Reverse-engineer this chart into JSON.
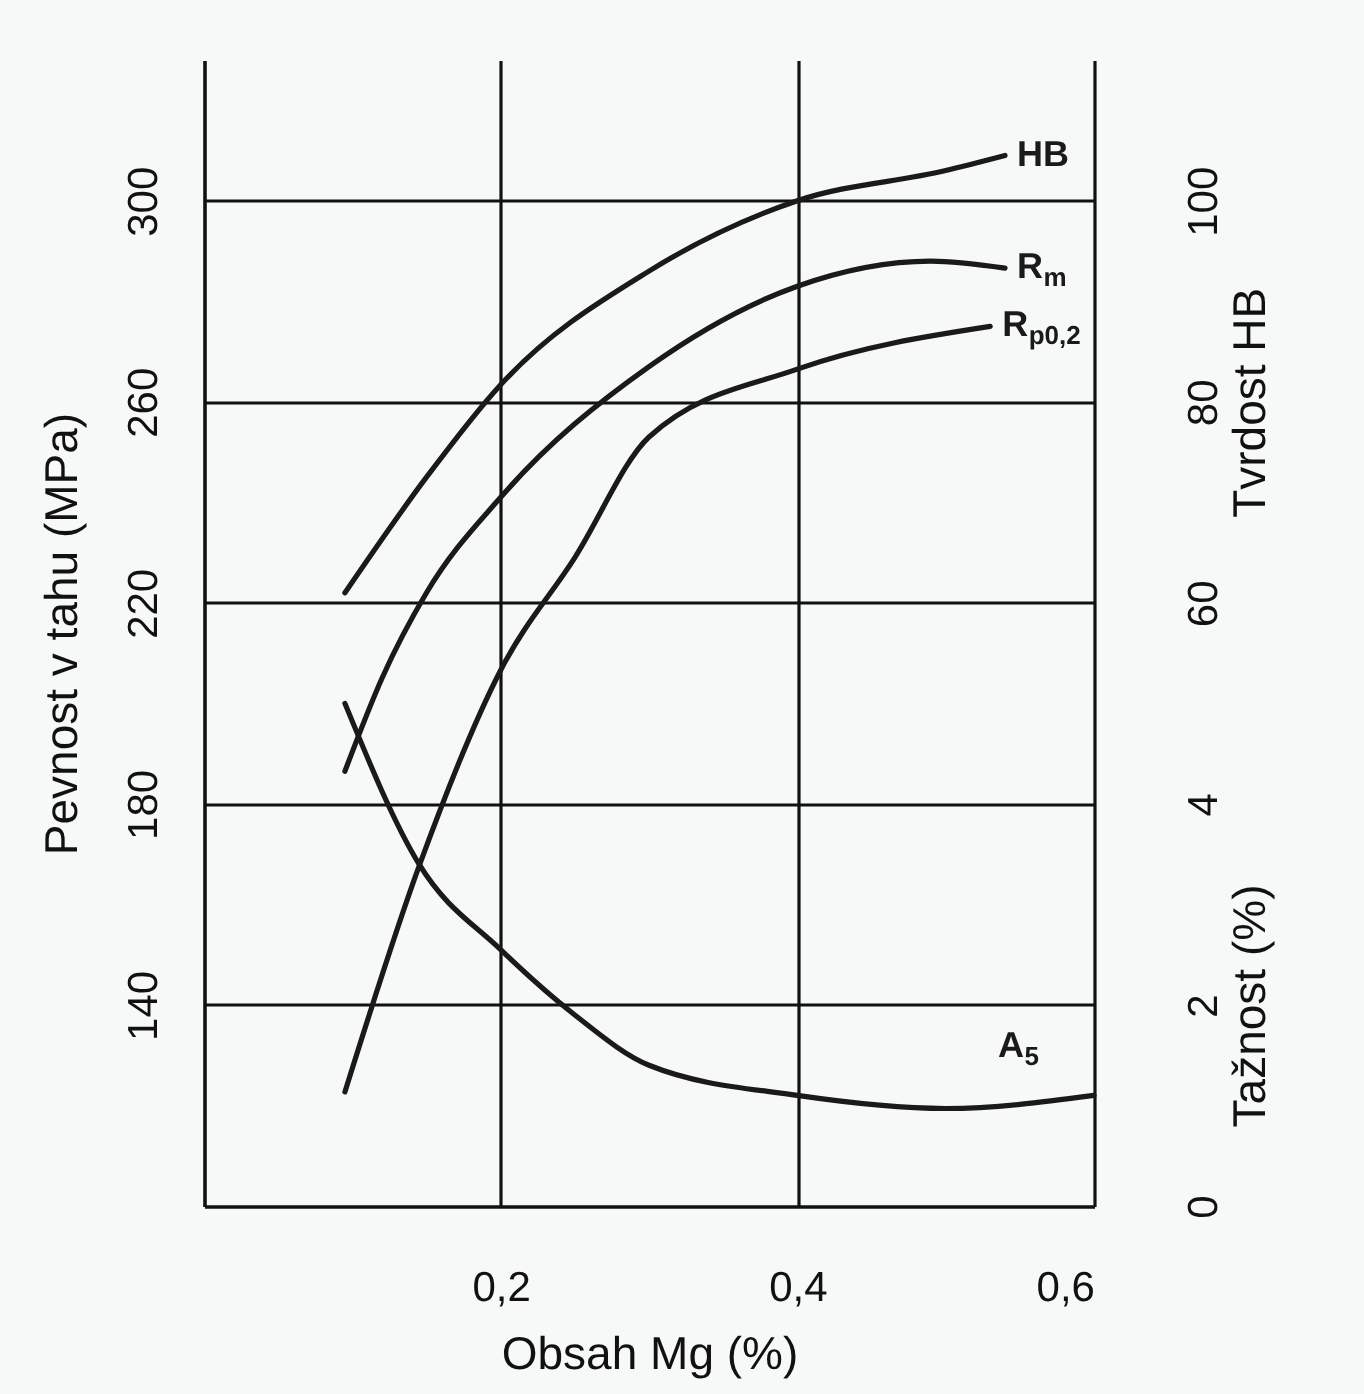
{
  "chart_data": {
    "type": "line",
    "xlabel": "Obsah Mg  (%)",
    "ylabel": "Pevnost v tahu  (MPa)",
    "y2label": "Tvrdost  HB",
    "y3label": "Tažnost  (%)",
    "xlim": [
      0,
      0.6
    ],
    "xticks": [
      {
        "value": 0.2,
        "label": "0,2"
      },
      {
        "value": 0.4,
        "label": "0,4"
      },
      {
        "value": 0.6,
        "label": "0,6"
      }
    ],
    "ylim": [
      100,
      328
    ],
    "yticks": [
      140,
      180,
      220,
      260,
      300
    ],
    "y2lim": [
      0,
      114
    ],
    "y2ticks": [
      60,
      80,
      100
    ],
    "y3lim": [
      0,
      11.4
    ],
    "y3ticks": [
      0,
      2,
      4
    ],
    "grid": true,
    "line_style": "solid",
    "series": [
      {
        "name": "HB",
        "color": "#1a1a1a",
        "axis": "y2",
        "x": [
          0.095,
          0.15,
          0.2,
          0.3,
          0.4,
          0.5,
          0.54
        ],
        "values": [
          61,
          72.5,
          81.7,
          93,
          100,
          103,
          104.5
        ]
      },
      {
        "name": "R$_{m}$",
        "color": "#1a1a1a",
        "axis": "y",
        "x": [
          0.095,
          0.12,
          0.15,
          0.2,
          0.3,
          0.4,
          0.49,
          0.54
        ],
        "values": [
          186.5,
          205,
          222,
          241,
          267,
          283,
          288,
          286.6
        ]
      },
      {
        "name": "R$_{p0,2}$",
        "color": "#1a1a1a",
        "axis": "y",
        "x": [
          0.095,
          0.145,
          0.2,
          0.25,
          0.3,
          0.4,
          0.53
        ],
        "values": [
          122.7,
          167.6,
          206.6,
          229,
          253,
          266.5,
          275
        ]
      },
      {
        "name": "A$_{5}$",
        "color": "#1a1a1a",
        "axis": "y3",
        "x": [
          0.095,
          0.145,
          0.2,
          0.25,
          0.3,
          0.4,
          0.5,
          0.6
        ],
        "values": [
          5.0,
          3.4,
          2.55,
          1.9,
          1.4,
          1.1,
          0.97,
          1.1
        ]
      }
    ]
  }
}
